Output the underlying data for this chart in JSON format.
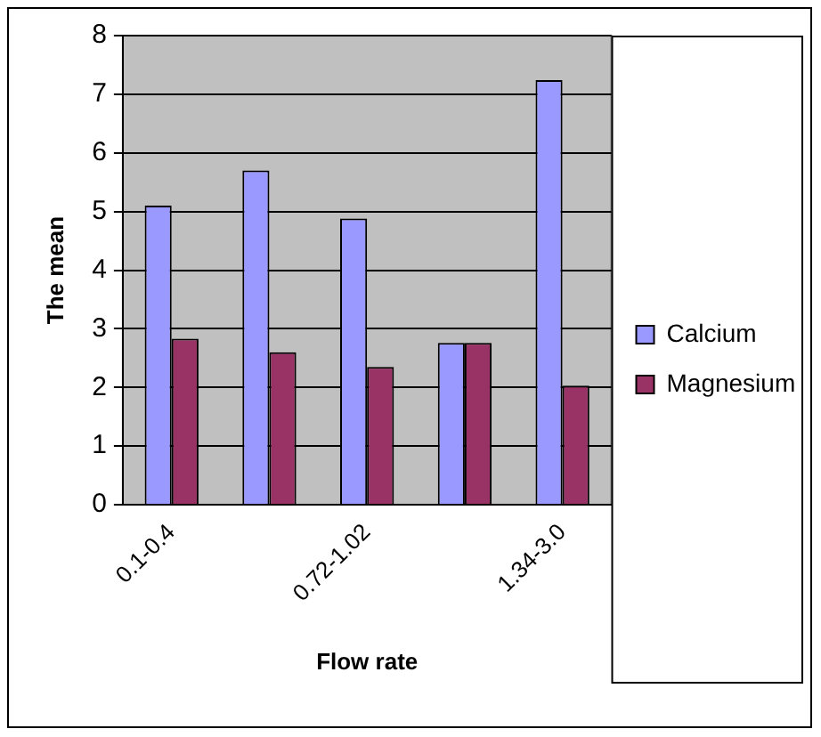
{
  "chart_data": {
    "type": "bar",
    "xlabel": "Flow rate",
    "ylabel": "The mean",
    "categories": [
      "0.1-0.4",
      null,
      "0.72-1.02",
      null,
      "1.34-3.0"
    ],
    "series": [
      {
        "name": "Calcium",
        "color": "#9999ff",
        "values": [
          5.1,
          5.7,
          4.88,
          2.76,
          7.24
        ]
      },
      {
        "name": "Magnesium",
        "color": "#993366",
        "values": [
          2.83,
          2.6,
          2.35,
          2.76,
          2.03
        ]
      }
    ],
    "ylim": [
      0,
      8
    ],
    "yticks": [
      0,
      1,
      2,
      3,
      4,
      5,
      6,
      7,
      8
    ],
    "grid": "y",
    "legend": "right"
  }
}
